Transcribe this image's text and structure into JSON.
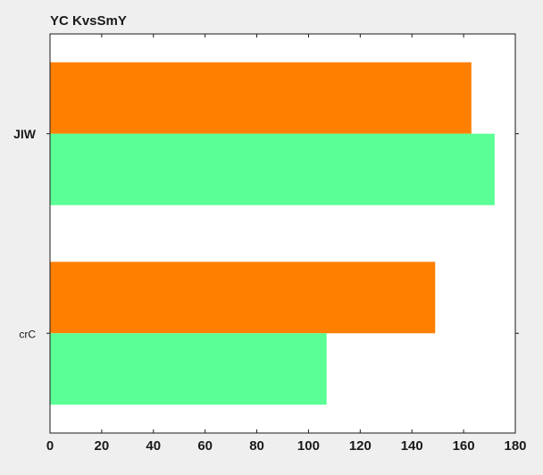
{
  "chart_data": {
    "type": "bar",
    "orientation": "horizontal",
    "title": "YC KvsSmY",
    "xlabel": "",
    "ylabel": "",
    "categories": [
      "JIW",
      "crC"
    ],
    "series": [
      {
        "color": "#ff7f00",
        "values": [
          163,
          149
        ]
      },
      {
        "color": "#5aff96",
        "values": [
          172,
          107
        ]
      }
    ],
    "xlim": [
      0,
      180
    ],
    "xticks": [
      0,
      20,
      40,
      60,
      80,
      100,
      120,
      140,
      160,
      180
    ],
    "grid": false,
    "legend": "none"
  }
}
